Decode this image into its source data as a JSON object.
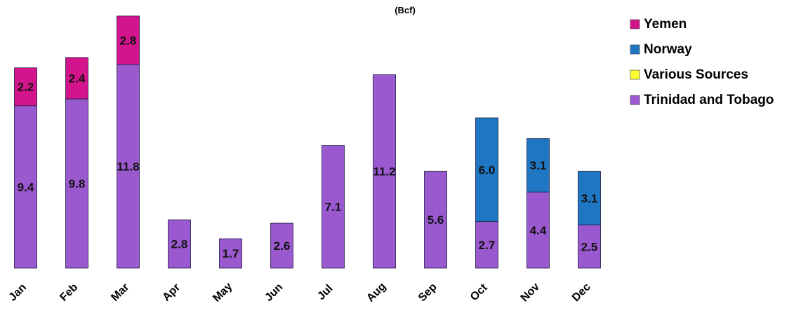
{
  "chart_data": {
    "type": "bar",
    "stacked": true,
    "subtitle": "(Bcf)",
    "categories": [
      "Jan",
      "Feb",
      "Mar",
      "Apr",
      "May",
      "Jun",
      "Jul",
      "Aug",
      "Sep",
      "Oct",
      "Nov",
      "Dec"
    ],
    "series": [
      {
        "name": "Trinidad and Tobago",
        "color": "#9b59d0",
        "values": [
          9.4,
          9.8,
          11.8,
          2.8,
          1.7,
          2.6,
          7.1,
          11.2,
          5.6,
          2.7,
          4.4,
          2.5
        ]
      },
      {
        "name": "Various Sources",
        "color": "#ffff33",
        "values": [
          0,
          0,
          0,
          0,
          0,
          0,
          0,
          0,
          0,
          0,
          0,
          0
        ]
      },
      {
        "name": "Norway",
        "color": "#1f77c4",
        "values": [
          0,
          0,
          0,
          0,
          0,
          0,
          0,
          0,
          0,
          6.0,
          3.1,
          3.1
        ]
      },
      {
        "name": "Yemen",
        "color": "#d4148c",
        "values": [
          2.2,
          2.4,
          2.8,
          0,
          0,
          0,
          0,
          0,
          0,
          0,
          0,
          0
        ]
      }
    ],
    "legend": [
      "Yemen",
      "Norway",
      "Various Sources",
      "Trinidad and Tobago"
    ],
    "legend_position": "top-right",
    "ylim": [
      0,
      15
    ],
    "grid": false
  }
}
